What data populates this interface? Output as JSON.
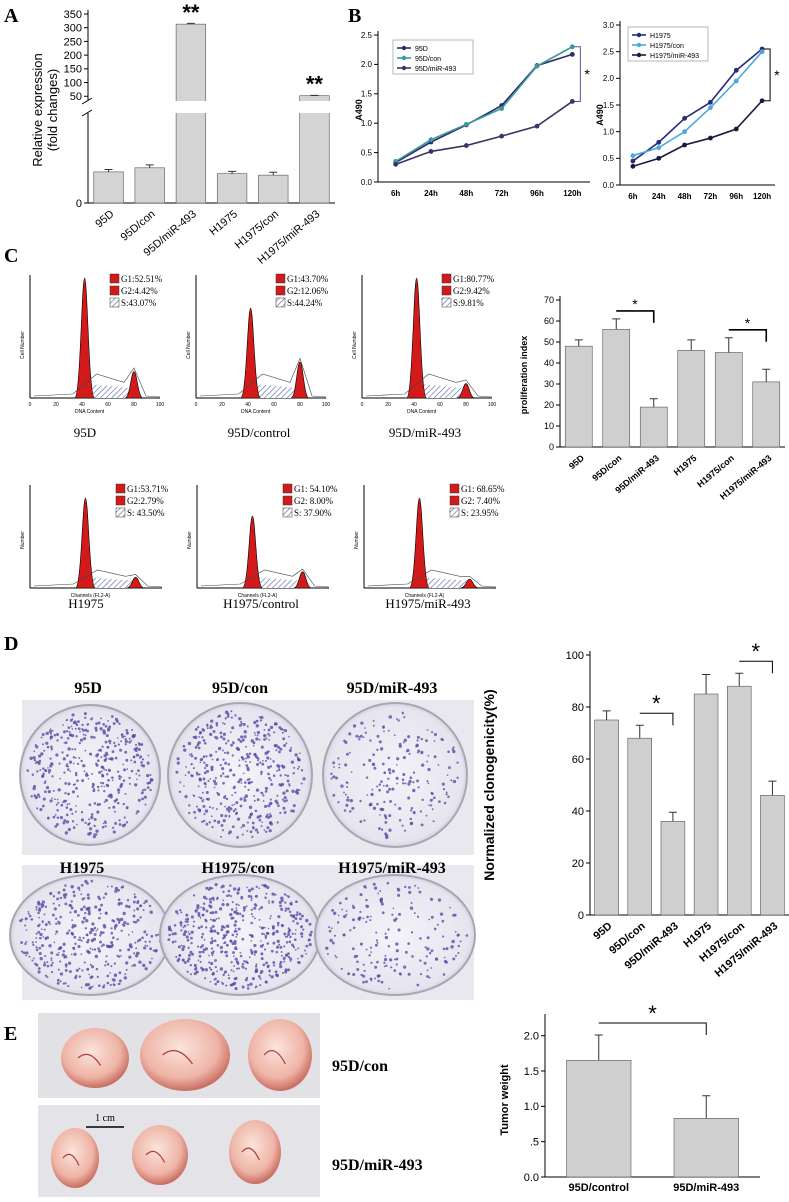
{
  "panels": [
    "A",
    "B",
    "C",
    "D",
    "E"
  ],
  "chart_data": [
    {
      "type": "bar",
      "y_label": [
        "Relative expression",
        "(fold changes)"
      ],
      "categories": [
        "95D",
        "95D/con",
        "95D/miR-493",
        "H1975",
        "H1975/con",
        "H1975/miR-493"
      ],
      "values": [
        1.06,
        1.2,
        313,
        1.0,
        0.95,
        52
      ],
      "errors": [
        0.08,
        0.1,
        3,
        0.08,
        0.1,
        1
      ],
      "color": "#d4d4d4",
      "ylim": [
        0,
        350
      ],
      "ybreak": [
        3,
        40
      ],
      "yticks": [
        0,
        50,
        100,
        150,
        200,
        250,
        300,
        350
      ],
      "annotations": [
        "**",
        "**"
      ]
    },
    {
      "type": "line",
      "y_label": "A490",
      "categories": [
        "6h",
        "24h",
        "48h",
        "72h",
        "96h",
        "120h"
      ],
      "series": [
        {
          "name": "95D",
          "color": "#2e2a6e",
          "values": [
            0.33,
            0.68,
            0.97,
            1.3,
            1.98,
            2.17
          ]
        },
        {
          "name": "95D/con",
          "color": "#3a9a9a",
          "values": [
            0.35,
            0.72,
            0.98,
            1.25,
            1.97,
            2.3
          ]
        },
        {
          "name": "95D/miR-493",
          "color": "#3b3266",
          "values": [
            0.3,
            0.52,
            0.62,
            0.78,
            0.95,
            1.37
          ]
        }
      ],
      "ylim": [
        0,
        2.5
      ],
      "yticks": [
        {
          "value": 0,
          "label": "0.0"
        },
        0.5,
        {
          "value": 1,
          "label": "1.0"
        },
        1.5,
        {
          "value": 2,
          "label": "2.0"
        },
        2.5
      ],
      "annotations": [
        "*"
      ]
    },
    {
      "type": "line",
      "y_label": "A490",
      "categories": [
        "6h",
        "24h",
        "48h",
        "72h",
        "96h",
        "120h"
      ],
      "series": [
        {
          "name": "H1975",
          "color": "#2a2a7a",
          "values": [
            0.45,
            0.8,
            1.25,
            1.55,
            2.15,
            2.55
          ]
        },
        {
          "name": "H1975/con",
          "color": "#4aa8e0",
          "values": [
            0.55,
            0.7,
            1.0,
            1.45,
            1.95,
            2.5
          ]
        },
        {
          "name": "H1975/miR-493",
          "color": "#1a1a40",
          "values": [
            0.35,
            0.5,
            0.75,
            0.88,
            1.05,
            1.58
          ]
        }
      ],
      "ylim": [
        0,
        3
      ],
      "yticks": [
        {
          "value": 0,
          "label": "0.0"
        },
        0.5,
        {
          "value": 1,
          "label": "1.0"
        },
        1.5,
        {
          "value": 2,
          "label": "2.0"
        },
        2.5,
        {
          "value": 3,
          "label": "3.0"
        }
      ],
      "annotations": [
        "*"
      ]
    },
    {
      "type": "bar",
      "y_label": "proliferation index",
      "categories": [
        "95D",
        "95D/con",
        "95D/miR-493",
        "H1975",
        "H1975/con",
        "H1975/miR-493"
      ],
      "values": [
        48,
        56,
        19,
        46,
        45,
        31
      ],
      "errors": [
        3,
        5,
        4,
        5,
        7,
        6
      ],
      "color": "#cfcfcf",
      "ylim": [
        0,
        70
      ],
      "yticks": [
        0,
        10,
        20,
        30,
        40,
        50,
        60,
        70
      ],
      "annotations": [
        "*",
        "*"
      ]
    },
    {
      "type": "bar",
      "y_label": "Normalized clonogenicity(%)",
      "categories": [
        "95D",
        "95D/con",
        "95D/miR-493",
        "H1975",
        "H1975/con",
        "H1975/miR-493"
      ],
      "values": [
        75,
        68,
        36,
        85,
        88,
        46
      ],
      "errors": [
        3.5,
        5,
        3.5,
        7.5,
        5,
        5.5
      ],
      "color": "#cfcfcf",
      "ylim": [
        0,
        100
      ],
      "yticks": [
        0,
        20,
        40,
        60,
        80,
        100
      ],
      "annotations": [
        "*",
        "*"
      ]
    },
    {
      "type": "bar",
      "y_label": "Tumor weight",
      "categories": [
        "95D/control",
        "95D/miR-493"
      ],
      "values": [
        1.65,
        0.83
      ],
      "errors": [
        0.36,
        0.32
      ],
      "color": "#cfcfcf",
      "ylim": [
        0,
        2.25
      ],
      "yticks": [
        {
          "value": 0,
          "label": "0.0"
        },
        {
          "value": 0.5,
          "label": ".5"
        },
        {
          "value": 1,
          "label": "1.0"
        },
        1.5,
        {
          "value": 2,
          "label": "2.0"
        }
      ],
      "annotations": [
        "*"
      ]
    }
  ],
  "flow": {
    "xticks": [
      "0",
      "20",
      "40",
      "60",
      "80",
      "100"
    ],
    "plots": [
      {
        "caption": "95D",
        "g1": "G1:52.51%",
        "g2": "G2:4.42%",
        "s": "S:43.07%",
        "y_label": "Cell Number",
        "x_label": "DNA Content"
      },
      {
        "caption": "95D/control",
        "g1": "G1:43.70%",
        "g2": "G2:12.06%",
        "s": "S:44.24%",
        "y_label": "Cell Number",
        "x_label": "DNA Content"
      },
      {
        "caption": "95D/miR-493",
        "g1": "G1:80.77%",
        "g2": "G2:9.42%",
        "s": "S:9.81%",
        "y_label": "Cell Number",
        "x_label": "DNA Content"
      },
      {
        "caption": "H1975",
        "g1": "G1:53.71%",
        "g2": "G2:2.79%",
        "s": "S: 43.50%",
        "y_label": "Number",
        "x_label": "Channels (FL2-A)"
      },
      {
        "caption": "H1975/control",
        "g1": "G1: 54.10%",
        "g2": "G2: 8.00%",
        "s": "S: 37.90%",
        "y_label": "Number",
        "x_label": "Channels (FL2-A)"
      },
      {
        "caption": "H1975/miR-493",
        "g1": "G1: 68.65%",
        "g2": "G2: 7.40%",
        "s": "S: 23.95%",
        "y_label": "Number",
        "x_label": "Channels (FL2-A)"
      }
    ]
  },
  "colonies": {
    "labels": [
      "95D",
      "95D/con",
      "95D/miR-493",
      "H1975",
      "H1975/con",
      "H1975/miR-493"
    ]
  },
  "tumors": {
    "labels": [
      "95D/con",
      "95D/miR-493"
    ],
    "scale": "1 cm"
  }
}
